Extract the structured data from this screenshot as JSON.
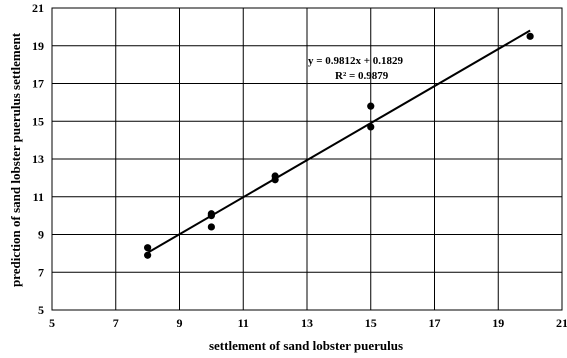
{
  "chart_data": {
    "type": "scatter",
    "xlabel": "settlement of sand lobster puerulus",
    "ylabel": "prediction of sand lobster puerulus settlement",
    "xlim": [
      5,
      21
    ],
    "ylim": [
      5,
      21
    ],
    "xticks": [
      5,
      7,
      9,
      11,
      13,
      15,
      17,
      19,
      21
    ],
    "yticks": [
      5,
      7,
      9,
      11,
      13,
      15,
      17,
      19,
      21
    ],
    "grid": true,
    "series": [
      {
        "points": [
          {
            "x": 8,
            "y": 8.3
          },
          {
            "x": 8,
            "y": 7.9
          },
          {
            "x": 10,
            "y": 10.1
          },
          {
            "x": 10,
            "y": 10.0
          },
          {
            "x": 10,
            "y": 9.4
          },
          {
            "x": 12,
            "y": 12.1
          },
          {
            "x": 12,
            "y": 11.9
          },
          {
            "x": 15,
            "y": 15.8
          },
          {
            "x": 15,
            "y": 14.7
          },
          {
            "x": 20,
            "y": 19.5
          }
        ]
      }
    ],
    "trendline": {
      "slope": 0.9812,
      "intercept": 0.1829,
      "x_range": [
        8,
        20
      ],
      "equation": "y = 0.9812x + 0.1829",
      "r_squared": "R² = 0.9879"
    },
    "colors": {
      "points": "#000000",
      "line": "#000000",
      "grid": "#000000"
    }
  }
}
